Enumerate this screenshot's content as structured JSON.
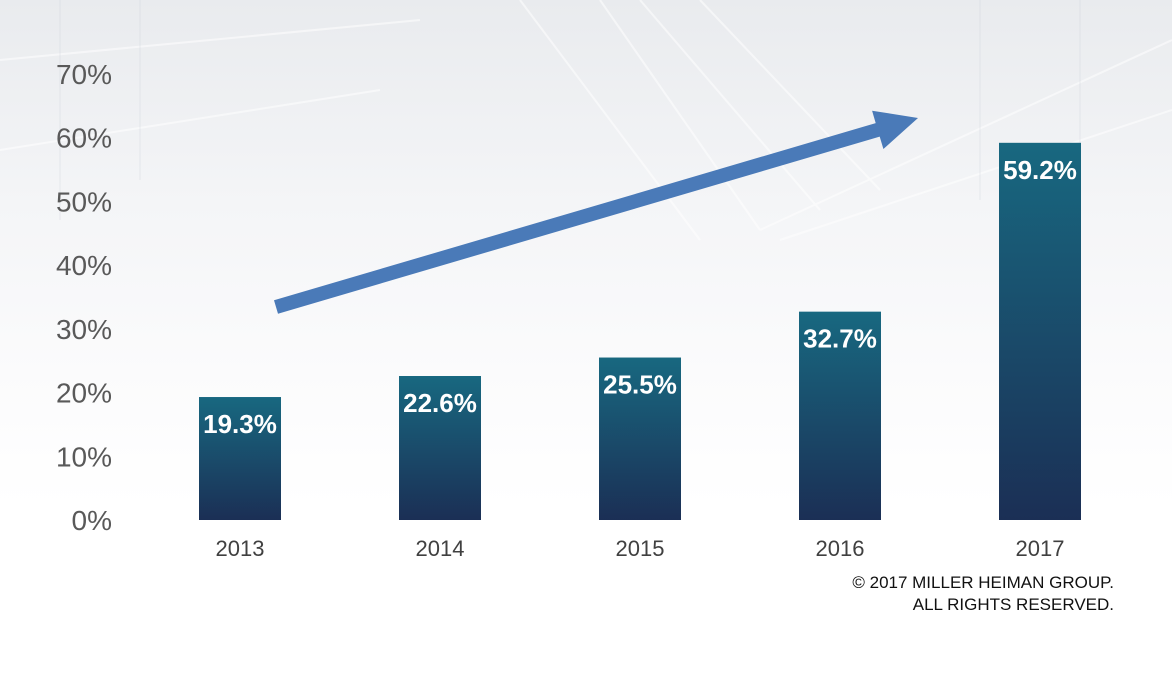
{
  "chart_data": {
    "type": "bar",
    "categories": [
      "2013",
      "2014",
      "2015",
      "2016",
      "2017"
    ],
    "values": [
      19.3,
      22.6,
      25.5,
      32.7,
      59.2
    ],
    "data_labels": [
      "19.3%",
      "22.6%",
      "25.5%",
      "32.7%",
      "59.2%"
    ],
    "title": "",
    "xlabel": "",
    "ylabel": "",
    "ylim": [
      0,
      70
    ],
    "y_ticks": [
      0,
      10,
      20,
      30,
      40,
      50,
      60,
      70
    ],
    "y_tick_labels": [
      "0%",
      "10%",
      "20%",
      "30%",
      "40%",
      "50%",
      "60%",
      "70%"
    ],
    "grid": false,
    "legend": "none",
    "annotations": [
      {
        "type": "trend-arrow",
        "direction": "up-right",
        "from_category": "2013",
        "to_category": "2017"
      }
    ],
    "colors": {
      "bar_top": "#186880",
      "bar_bottom": "#1b2f55",
      "arrow": "#4a7ab8",
      "data_label": "#ffffff",
      "tick_label": "#595959"
    }
  },
  "footer": {
    "line1": "© 2017 MILLER HEIMAN GROUP.",
    "line2": "ALL RIGHTS RESERVED."
  }
}
